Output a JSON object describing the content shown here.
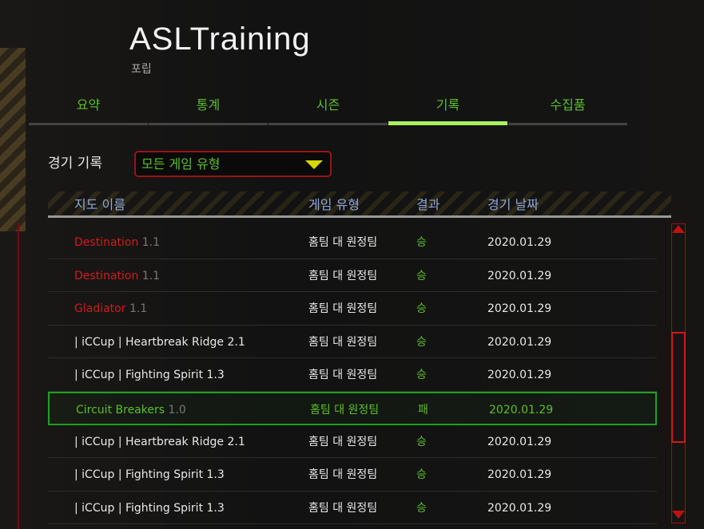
{
  "header": {
    "title": "ASLTraining",
    "subtitle": "포립"
  },
  "tabs": [
    {
      "label": "요약"
    },
    {
      "label": "통계"
    },
    {
      "label": "시즌"
    },
    {
      "label": "기록",
      "active": true
    },
    {
      "label": "수집품"
    }
  ],
  "filter": {
    "label": "경기 기록",
    "selected": "모든 게임 유형"
  },
  "table": {
    "columns": [
      "지도 이름",
      "게임 유형",
      "결과",
      "경기 날짜"
    ],
    "rows": [
      {
        "map": "Destination",
        "version": "1.1",
        "type": "홈팀 대 원정팀",
        "result": "승",
        "date": "2020.01.29",
        "color": "red"
      },
      {
        "map": "Destination",
        "version": "1.1",
        "type": "홈팀 대 원정팀",
        "result": "승",
        "date": "2020.01.29",
        "color": "red"
      },
      {
        "map": "Gladiator",
        "version": "1.1",
        "type": "홈팀 대 원정팀",
        "result": "승",
        "date": "2020.01.29",
        "color": "red"
      },
      {
        "map": "| iCCup | Heartbreak Ridge 2.1",
        "version": "",
        "type": "홈팀 대 원정팀",
        "result": "승",
        "date": "2020.01.29",
        "color": "white"
      },
      {
        "map": "| iCCup | Fighting Spirit 1.3",
        "version": "",
        "type": "홈팀 대 원정팀",
        "result": "승",
        "date": "2020.01.29",
        "color": "white"
      },
      {
        "map": "Circuit Breakers",
        "version": "1.0",
        "type": "홈팀 대 원정팀",
        "result": "패",
        "date": "2020.01.29",
        "color": "green",
        "selected": true
      },
      {
        "map": "| iCCup | Heartbreak Ridge 2.1",
        "version": "",
        "type": "홈팀 대 원정팀",
        "result": "승",
        "date": "2020.01.29",
        "color": "white"
      },
      {
        "map": "| iCCup | Fighting Spirit 1.3",
        "version": "",
        "type": "홈팀 대 원정팀",
        "result": "승",
        "date": "2020.01.29",
        "color": "white"
      },
      {
        "map": "| iCCup | Fighting Spirit 1.3",
        "version": "",
        "type": "홈팀 대 원정팀",
        "result": "승",
        "date": "2020.01.29",
        "color": "white"
      }
    ]
  },
  "colors": {
    "accent": "#5cbf2a",
    "tab_active": "#a8f060",
    "border_red": "#9a1414",
    "header_text": "#8ea6d8"
  }
}
